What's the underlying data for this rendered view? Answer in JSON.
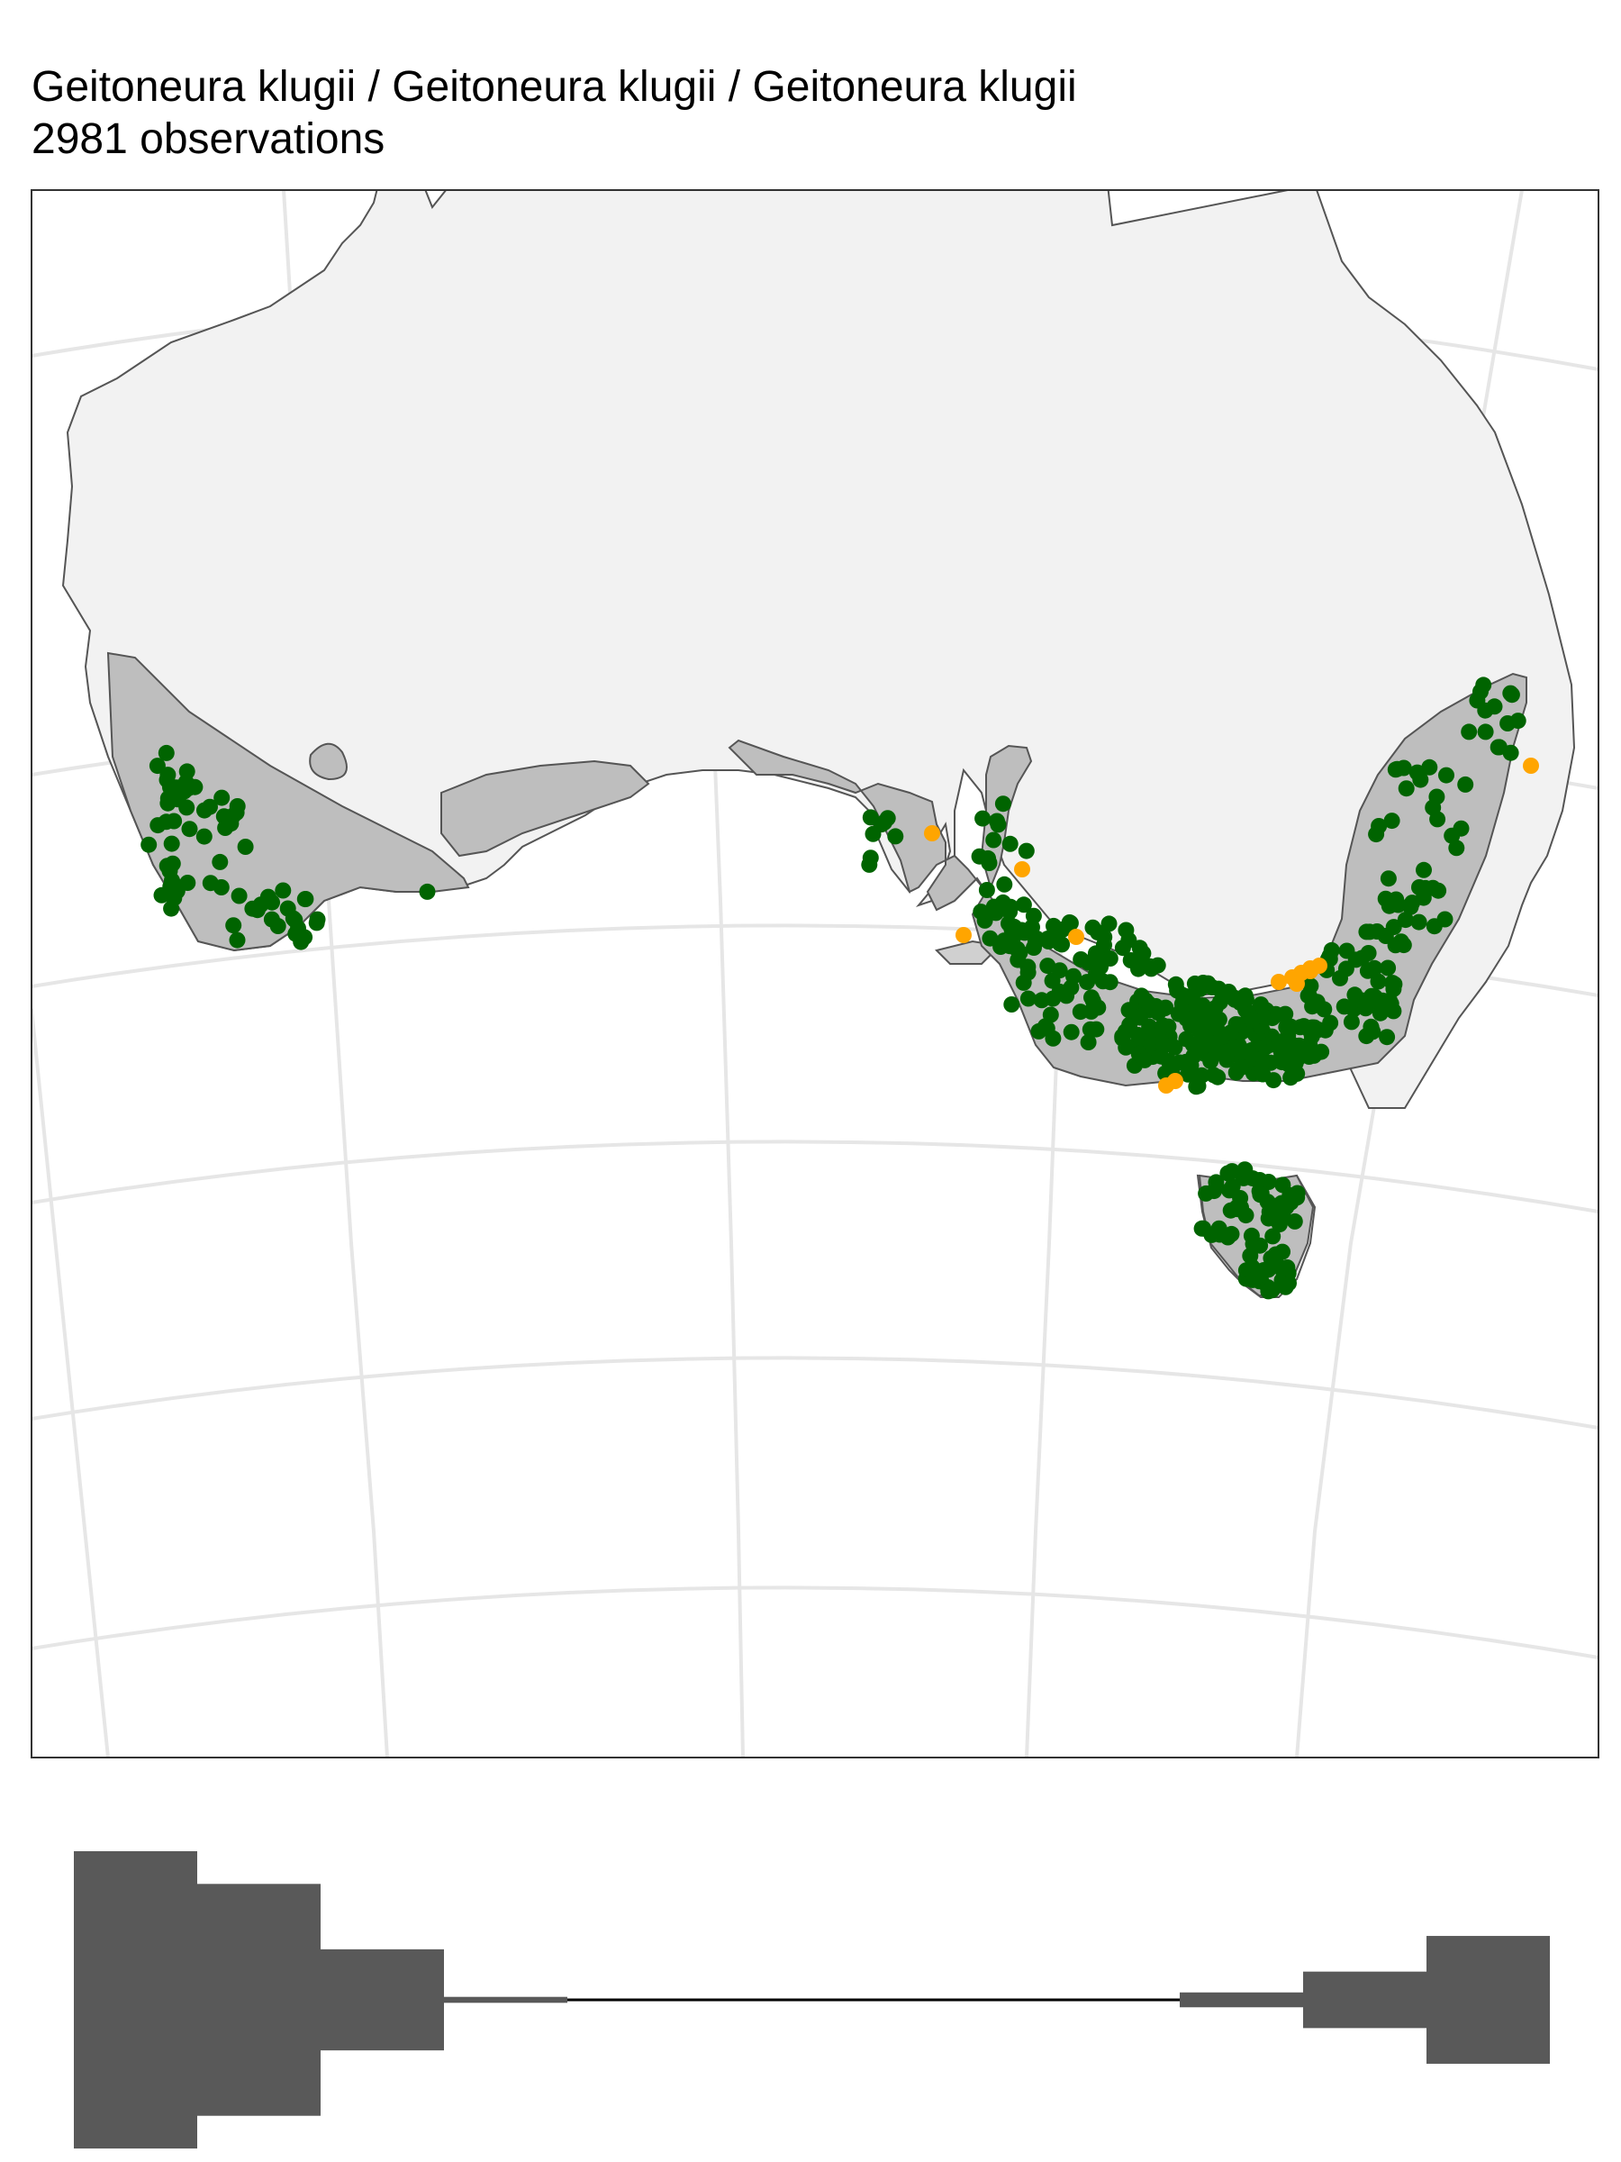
{
  "title": {
    "line1": "Geitoneura klugii / Geitoneura klugii / Geitoneura klugii",
    "line2": "2981 observations"
  },
  "colors": {
    "land": "#f2f2f2",
    "coast": "#555555",
    "range": "#bebebe",
    "grid": "#e6e6e6",
    "obs_primary": "#006400",
    "obs_secondary": "#ffa500",
    "bar": "#595959"
  },
  "map": {
    "projection": "curved (conic-style) graticule",
    "layers": [
      "land",
      "species-range",
      "observations"
    ]
  },
  "phenology_bars": {
    "orientation": "mirrored horizontal bar profile",
    "left_cluster_levels": [
      1.0,
      0.78,
      0.34,
      0.02
    ],
    "right_cluster_levels": [
      0.05,
      0.19,
      0.43
    ]
  }
}
